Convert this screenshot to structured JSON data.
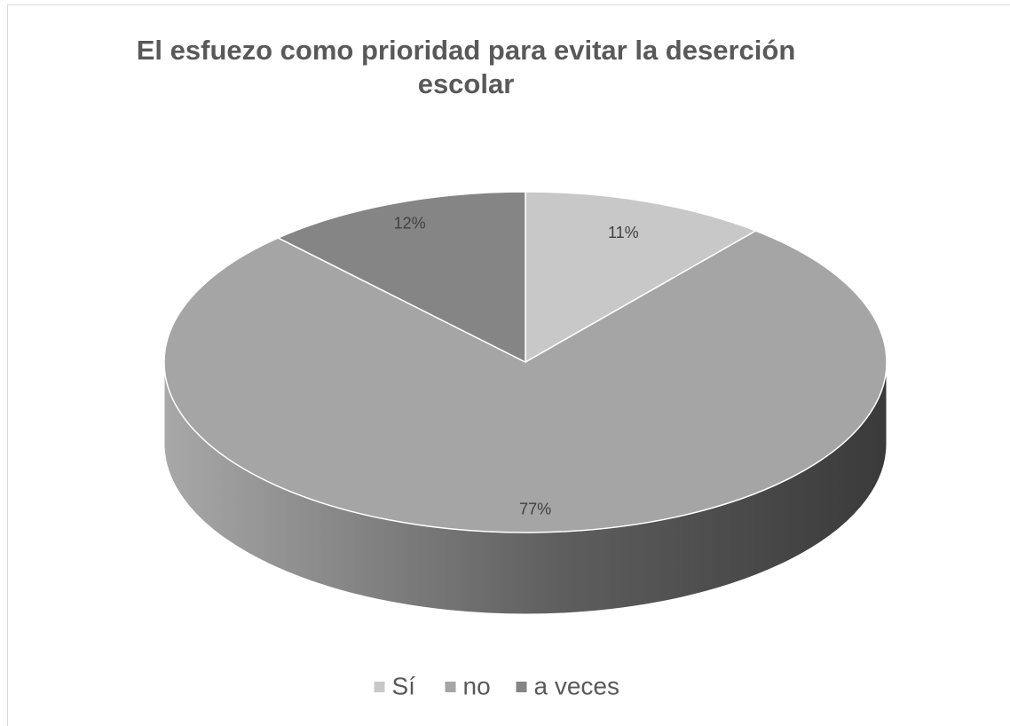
{
  "chart_data": {
    "type": "pie",
    "title": "El esfuezo  como prioridad para evitar la deserción escolar",
    "categories": [
      "Sí",
      "no",
      "a veces"
    ],
    "values": [
      11,
      77,
      12
    ],
    "value_labels": [
      "11%",
      "77%",
      "12%"
    ],
    "colors": [
      "#c8c8c8",
      "#a5a5a5",
      "#858585"
    ],
    "legend": "bottom"
  }
}
